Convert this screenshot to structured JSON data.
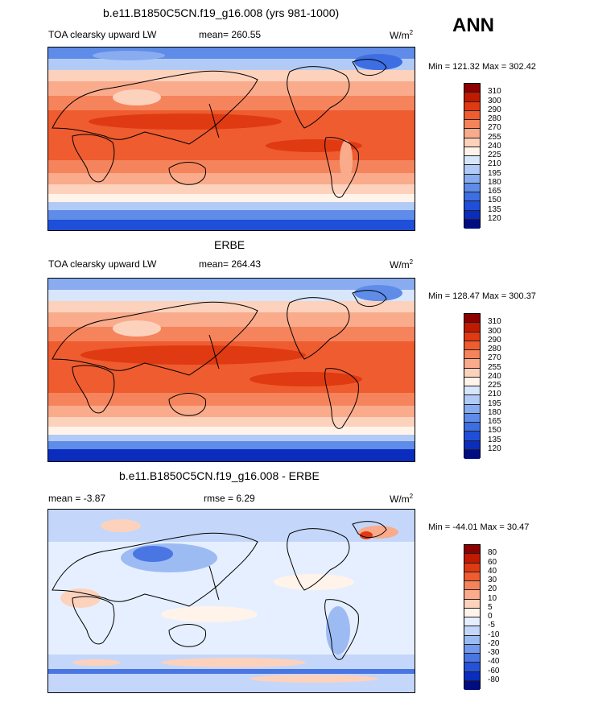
{
  "season": "ANN",
  "units_base": "W/m",
  "units_exp": "2",
  "panels": [
    {
      "title": "b.e11.B1850C5CN.f19_g16.008 (yrs 981-1000)",
      "variable": "TOA clearsky upward LW",
      "mean_text": "mean= 260.55",
      "range_text": "Min = 121.32 Max = 302.42",
      "levels": [
        "310",
        "300",
        "290",
        "280",
        "270",
        "255",
        "240",
        "225",
        "210",
        "195",
        "180",
        "165",
        "150",
        "135",
        "120"
      ],
      "colors": [
        "#8c0000",
        "#c01a00",
        "#e03a12",
        "#ee5c30",
        "#f5845c",
        "#f9ab8c",
        "#fcd2bd",
        "#fff3ea",
        "#d8e6fb",
        "#b2cbf6",
        "#88acef",
        "#5e8ce8",
        "#3d6ee2",
        "#1f4fd8",
        "#0a2dbd",
        "#000c80"
      ]
    },
    {
      "title": "ERBE",
      "variable": "TOA clearsky upward LW",
      "mean_text": "mean= 264.43",
      "range_text": "Min = 128.47 Max = 300.37",
      "levels": [
        "310",
        "300",
        "290",
        "280",
        "270",
        "255",
        "240",
        "225",
        "210",
        "195",
        "180",
        "165",
        "150",
        "135",
        "120"
      ],
      "colors": [
        "#8c0000",
        "#c01a00",
        "#e03a12",
        "#ee5c30",
        "#f5845c",
        "#f9ab8c",
        "#fcd2bd",
        "#fff3ea",
        "#d8e6fb",
        "#b2cbf6",
        "#88acef",
        "#5e8ce8",
        "#3d6ee2",
        "#1f4fd8",
        "#0a2dbd",
        "#000c80"
      ]
    },
    {
      "title": "b.e11.B1850C5CN.f19_g16.008 - ERBE",
      "mean_text": "mean =  -3.87",
      "rmse_text": "rmse =   6.29",
      "range_text": "Min = -44.01 Max =  30.47",
      "levels": [
        "80",
        "60",
        "40",
        "30",
        "20",
        "10",
        "5",
        "0",
        "-5",
        "-10",
        "-20",
        "-30",
        "-40",
        "-60",
        "-80"
      ],
      "colors": [
        "#8c0000",
        "#c01a00",
        "#e03a12",
        "#ee5c30",
        "#f5845c",
        "#f9ab8c",
        "#fcd2bd",
        "#fff3ea",
        "#e6efff",
        "#c4d7fa",
        "#9dbbf3",
        "#7299eb",
        "#4a76e3",
        "#2452d8",
        "#0a2dbd",
        "#000c80"
      ]
    }
  ]
}
